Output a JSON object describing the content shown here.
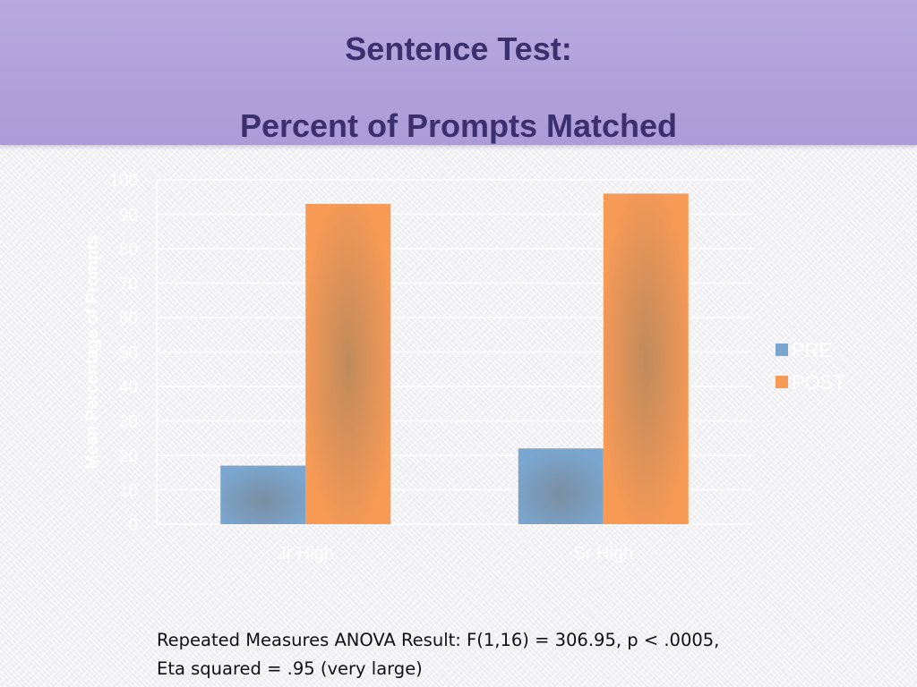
{
  "slide": {
    "title_line1": "Sentence Test:",
    "title_line2": "Percent of Prompts Matched"
  },
  "chart_data": {
    "type": "bar",
    "categories": [
      "Jr High",
      "Sr High"
    ],
    "series": [
      {
        "name": "PRE",
        "values": [
          17,
          22
        ],
        "color": "#7aa6cf"
      },
      {
        "name": "POST",
        "values": [
          93,
          96
        ],
        "color": "#f79a56"
      }
    ],
    "ylabel": "Mean Percentage of Prompts",
    "xlabel": "",
    "ylim": [
      0,
      100
    ],
    "yticks": [
      0,
      10,
      20,
      30,
      40,
      50,
      60,
      70,
      80,
      90,
      100
    ],
    "grid": true,
    "legend": "right"
  },
  "footer": {
    "line1": "Repeated Measures ANOVA Result: F(1,16) = 306.95, p < .0005,",
    "line2": "Eta squared = .95 (very large)"
  }
}
